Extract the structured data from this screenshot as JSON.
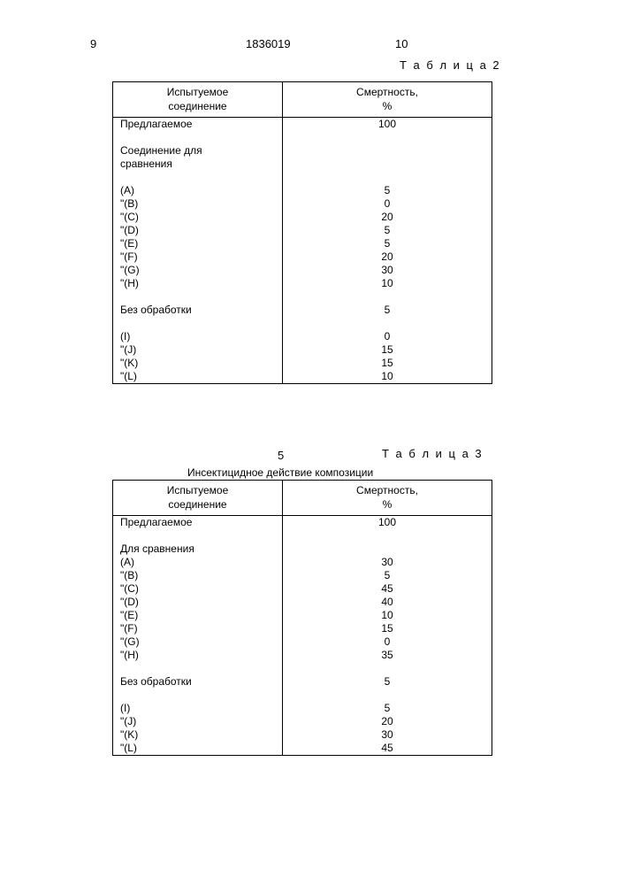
{
  "header": {
    "page_left": "9",
    "doc_number": "1836019",
    "page_right": "10"
  },
  "tables": [
    {
      "label": "Т а б л и ц а 2",
      "columns": [
        "Испытуемое\nсоединение",
        "Смертность,\n%"
      ],
      "rows": [
        [
          "Предлагаемое",
          "100"
        ],
        [
          "",
          ""
        ],
        [
          "Соединение для",
          ""
        ],
        [
          "сравнения",
          ""
        ],
        [
          "",
          ""
        ],
        [
          "(A)",
          "5"
        ],
        [
          "\"(B)",
          "0"
        ],
        [
          "\"(C)",
          "20"
        ],
        [
          "\"(D)",
          "5"
        ],
        [
          "\"(E)",
          "5"
        ],
        [
          "\"(F)",
          "20"
        ],
        [
          "\"(G)",
          "30"
        ],
        [
          "\"(H)",
          "10"
        ],
        [
          "",
          ""
        ],
        [
          "Без обработки",
          "5"
        ],
        [
          "",
          ""
        ],
        [
          "(I)",
          "0"
        ],
        [
          "\"(J)",
          "15"
        ],
        [
          "\"(K)",
          "15"
        ],
        [
          "\"(L)",
          "10"
        ]
      ]
    },
    {
      "label": "Т а б л и ц а 3",
      "noise_num": "5",
      "caption": "Инсектицидное действие композиции",
      "columns": [
        "Испытуемое\nсоединение",
        "Смертность,\n%"
      ],
      "rows": [
        [
          "Предлагаемое",
          "100"
        ],
        [
          "",
          ""
        ],
        [
          "Для сравнения",
          ""
        ],
        [
          "(A)",
          "30"
        ],
        [
          "\"(B)",
          "5"
        ],
        [
          "\"(C)",
          "45"
        ],
        [
          "\"(D)",
          "40"
        ],
        [
          "\"(E)",
          "10"
        ],
        [
          "\"(F)",
          "15"
        ],
        [
          "\"(G)",
          "0"
        ],
        [
          "\"(H)",
          "35"
        ],
        [
          "",
          ""
        ],
        [
          "Без обработки",
          "5"
        ],
        [
          "",
          ""
        ],
        [
          "(I)",
          "5"
        ],
        [
          "\"(J)",
          "20"
        ],
        [
          "\"(K)",
          "30"
        ],
        [
          "\"(L)",
          "45"
        ]
      ]
    }
  ]
}
